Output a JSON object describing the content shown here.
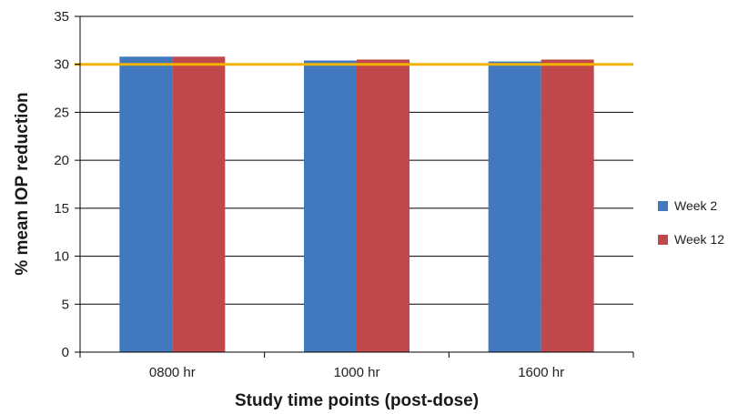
{
  "chart_data": {
    "type": "bar",
    "categories": [
      "0800 hr",
      "1000 hr",
      "1600 hr"
    ],
    "series": [
      {
        "name": "Week 2",
        "values": [
          30.8,
          30.4,
          30.3
        ],
        "color": "#4178be"
      },
      {
        "name": "Week 12",
        "values": [
          30.8,
          30.5,
          30.5
        ],
        "color": "#c0474a"
      }
    ],
    "xlabel": "Study time points (post-dose)",
    "ylabel": "% mean IOP reduction",
    "ylim": [
      0,
      35
    ],
    "yticks": [
      "0",
      "5",
      "10",
      "15",
      "20",
      "25",
      "30",
      "35"
    ],
    "grid": true,
    "legend": "right",
    "reference_line": {
      "value": 30,
      "color": "#f2b300"
    }
  }
}
